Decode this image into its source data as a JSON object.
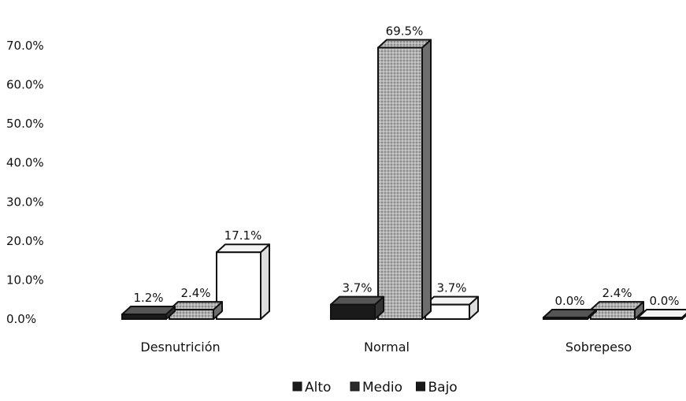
{
  "chart_data": {
    "type": "bar",
    "title": "",
    "xlabel": "",
    "ylabel": "",
    "categories": [
      "Desnutrición",
      "Normal",
      "Sobrepeso"
    ],
    "series": [
      {
        "name": "Alto",
        "values": [
          1.2,
          3.7,
          0.0
        ],
        "labels": [
          "1.2%",
          "3.7%",
          "0.0%"
        ],
        "color": "#1a1a1a"
      },
      {
        "name": "Medio",
        "values": [
          2.4,
          69.5,
          2.4
        ],
        "labels": [
          "2.4%",
          "69.5%",
          "2.4%"
        ],
        "color": "#9a9a9a"
      },
      {
        "name": "Bajo",
        "values": [
          17.1,
          3.7,
          0.0
        ],
        "labels": [
          "17.1%",
          "3.7%",
          "0.0%"
        ],
        "color": "#ffffff"
      }
    ],
    "ylim": [
      0,
      70
    ],
    "yticks": [
      0,
      10,
      20,
      30,
      40,
      50,
      60,
      70
    ],
    "ytick_labels": [
      "0.0%",
      "10.0%",
      "20.0%",
      "30.0%",
      "40.0%",
      "50.0%",
      "60.0%",
      "70.0%"
    ],
    "grid": false,
    "legend_position": "bottom"
  }
}
